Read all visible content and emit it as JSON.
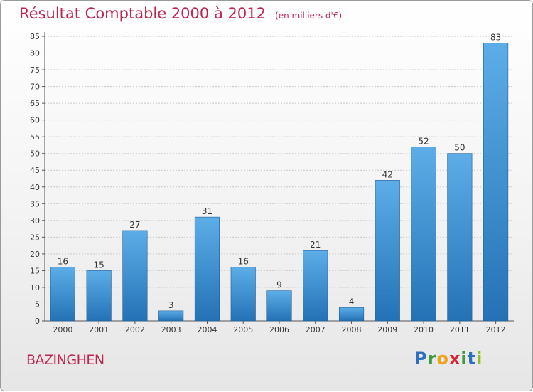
{
  "header": {
    "title": "Résultat Comptable 2000 à 2012",
    "unit": "(en milliers d'€)"
  },
  "footer": {
    "commune": "BAZINGHEN",
    "logo_letters": [
      "P",
      "r",
      "o",
      "x",
      "i",
      "t",
      "i"
    ]
  },
  "colors": {
    "title": "#c0244f",
    "bar_top": "#5dade8",
    "bar_bottom": "#2472b5",
    "grid": "#c8c8c8"
  },
  "chart_data": {
    "type": "bar",
    "title": "Résultat Comptable 2000 à 2012",
    "subtitle": "(en milliers d'€)",
    "xlabel": "",
    "ylabel": "",
    "categories": [
      "2000",
      "2001",
      "2002",
      "2003",
      "2004",
      "2005",
      "2006",
      "2007",
      "2008",
      "2009",
      "2010",
      "2011",
      "2012"
    ],
    "values": [
      16,
      15,
      27,
      3,
      31,
      16,
      9,
      21,
      4,
      42,
      52,
      50,
      83
    ],
    "ylim": [
      0,
      85
    ],
    "yticks": [
      0,
      5,
      10,
      15,
      20,
      25,
      30,
      35,
      40,
      45,
      50,
      55,
      60,
      65,
      70,
      75,
      80,
      85
    ],
    "grid": true,
    "data_labels": true,
    "legend": "none"
  }
}
